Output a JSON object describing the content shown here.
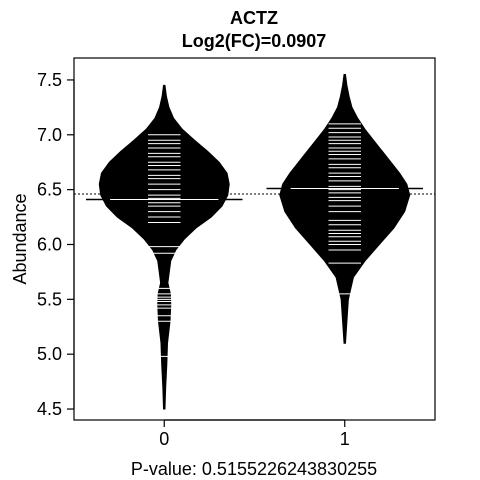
{
  "chart_data": {
    "type": "beanplot",
    "title": "ACTZ",
    "subtitle": "Log2(FC)=0.0907",
    "xlabel": "P-value: 0.5155226243830255",
    "ylabel": "Abundance",
    "categories": [
      "0",
      "1"
    ],
    "ylim": [
      4.4,
      7.7
    ],
    "yticks": [
      4.5,
      5.0,
      5.5,
      6.0,
      6.5,
      7.0,
      7.5
    ],
    "ytick_labels": [
      "4.5",
      "5.0",
      "5.5",
      "6.0",
      "6.5",
      "7.0",
      "7.5"
    ],
    "overall_mean": 6.46,
    "colors": {
      "bean": "#000000",
      "lines": "#ffffff"
    },
    "beans": [
      {
        "category": "0",
        "mean": 6.41,
        "density": [
          [
            4.5,
            0.01
          ],
          [
            4.7,
            0.02
          ],
          [
            4.9,
            0.035
          ],
          [
            5.1,
            0.045
          ],
          [
            5.3,
            0.08
          ],
          [
            5.45,
            0.09
          ],
          [
            5.55,
            0.085
          ],
          [
            5.65,
            0.05
          ],
          [
            5.75,
            0.07
          ],
          [
            5.85,
            0.09
          ],
          [
            5.95,
            0.16
          ],
          [
            6.05,
            0.28
          ],
          [
            6.15,
            0.44
          ],
          [
            6.25,
            0.65
          ],
          [
            6.35,
            0.8
          ],
          [
            6.45,
            0.88
          ],
          [
            6.55,
            0.9
          ],
          [
            6.65,
            0.87
          ],
          [
            6.75,
            0.76
          ],
          [
            6.85,
            0.6
          ],
          [
            6.95,
            0.42
          ],
          [
            7.05,
            0.25
          ],
          [
            7.15,
            0.13
          ],
          [
            7.25,
            0.065
          ],
          [
            7.35,
            0.03
          ],
          [
            7.45,
            0.01
          ]
        ],
        "points": [
          4.98,
          5.3,
          5.35,
          5.42,
          5.45,
          5.48,
          5.5,
          5.52,
          5.55,
          5.6,
          5.92,
          5.98,
          6.2,
          6.25,
          6.3,
          6.35,
          6.38,
          6.42,
          6.45,
          6.5,
          6.55,
          6.6,
          6.63,
          6.68,
          6.72,
          6.75,
          6.8,
          6.83,
          6.88,
          6.92,
          6.95,
          7.0
        ]
      },
      {
        "category": "1",
        "mean": 6.51,
        "density": [
          [
            5.1,
            0.01
          ],
          [
            5.3,
            0.03
          ],
          [
            5.5,
            0.05
          ],
          [
            5.7,
            0.12
          ],
          [
            5.85,
            0.28
          ],
          [
            6.0,
            0.48
          ],
          [
            6.15,
            0.68
          ],
          [
            6.3,
            0.83
          ],
          [
            6.45,
            0.9
          ],
          [
            6.55,
            0.86
          ],
          [
            6.65,
            0.76
          ],
          [
            6.75,
            0.64
          ],
          [
            6.85,
            0.52
          ],
          [
            6.95,
            0.4
          ],
          [
            7.05,
            0.28
          ],
          [
            7.15,
            0.18
          ],
          [
            7.25,
            0.1
          ],
          [
            7.35,
            0.06
          ],
          [
            7.45,
            0.03
          ],
          [
            7.55,
            0.01
          ]
        ],
        "points": [
          5.55,
          5.83,
          5.95,
          6.0,
          6.03,
          6.07,
          6.1,
          6.13,
          6.18,
          6.22,
          6.3,
          6.35,
          6.4,
          6.43,
          6.47,
          6.5,
          6.53,
          6.58,
          6.62,
          6.65,
          6.7,
          6.73,
          6.78,
          6.82,
          6.85,
          6.88,
          6.92,
          6.95,
          6.98,
          7.02,
          7.06,
          7.1
        ]
      }
    ]
  }
}
